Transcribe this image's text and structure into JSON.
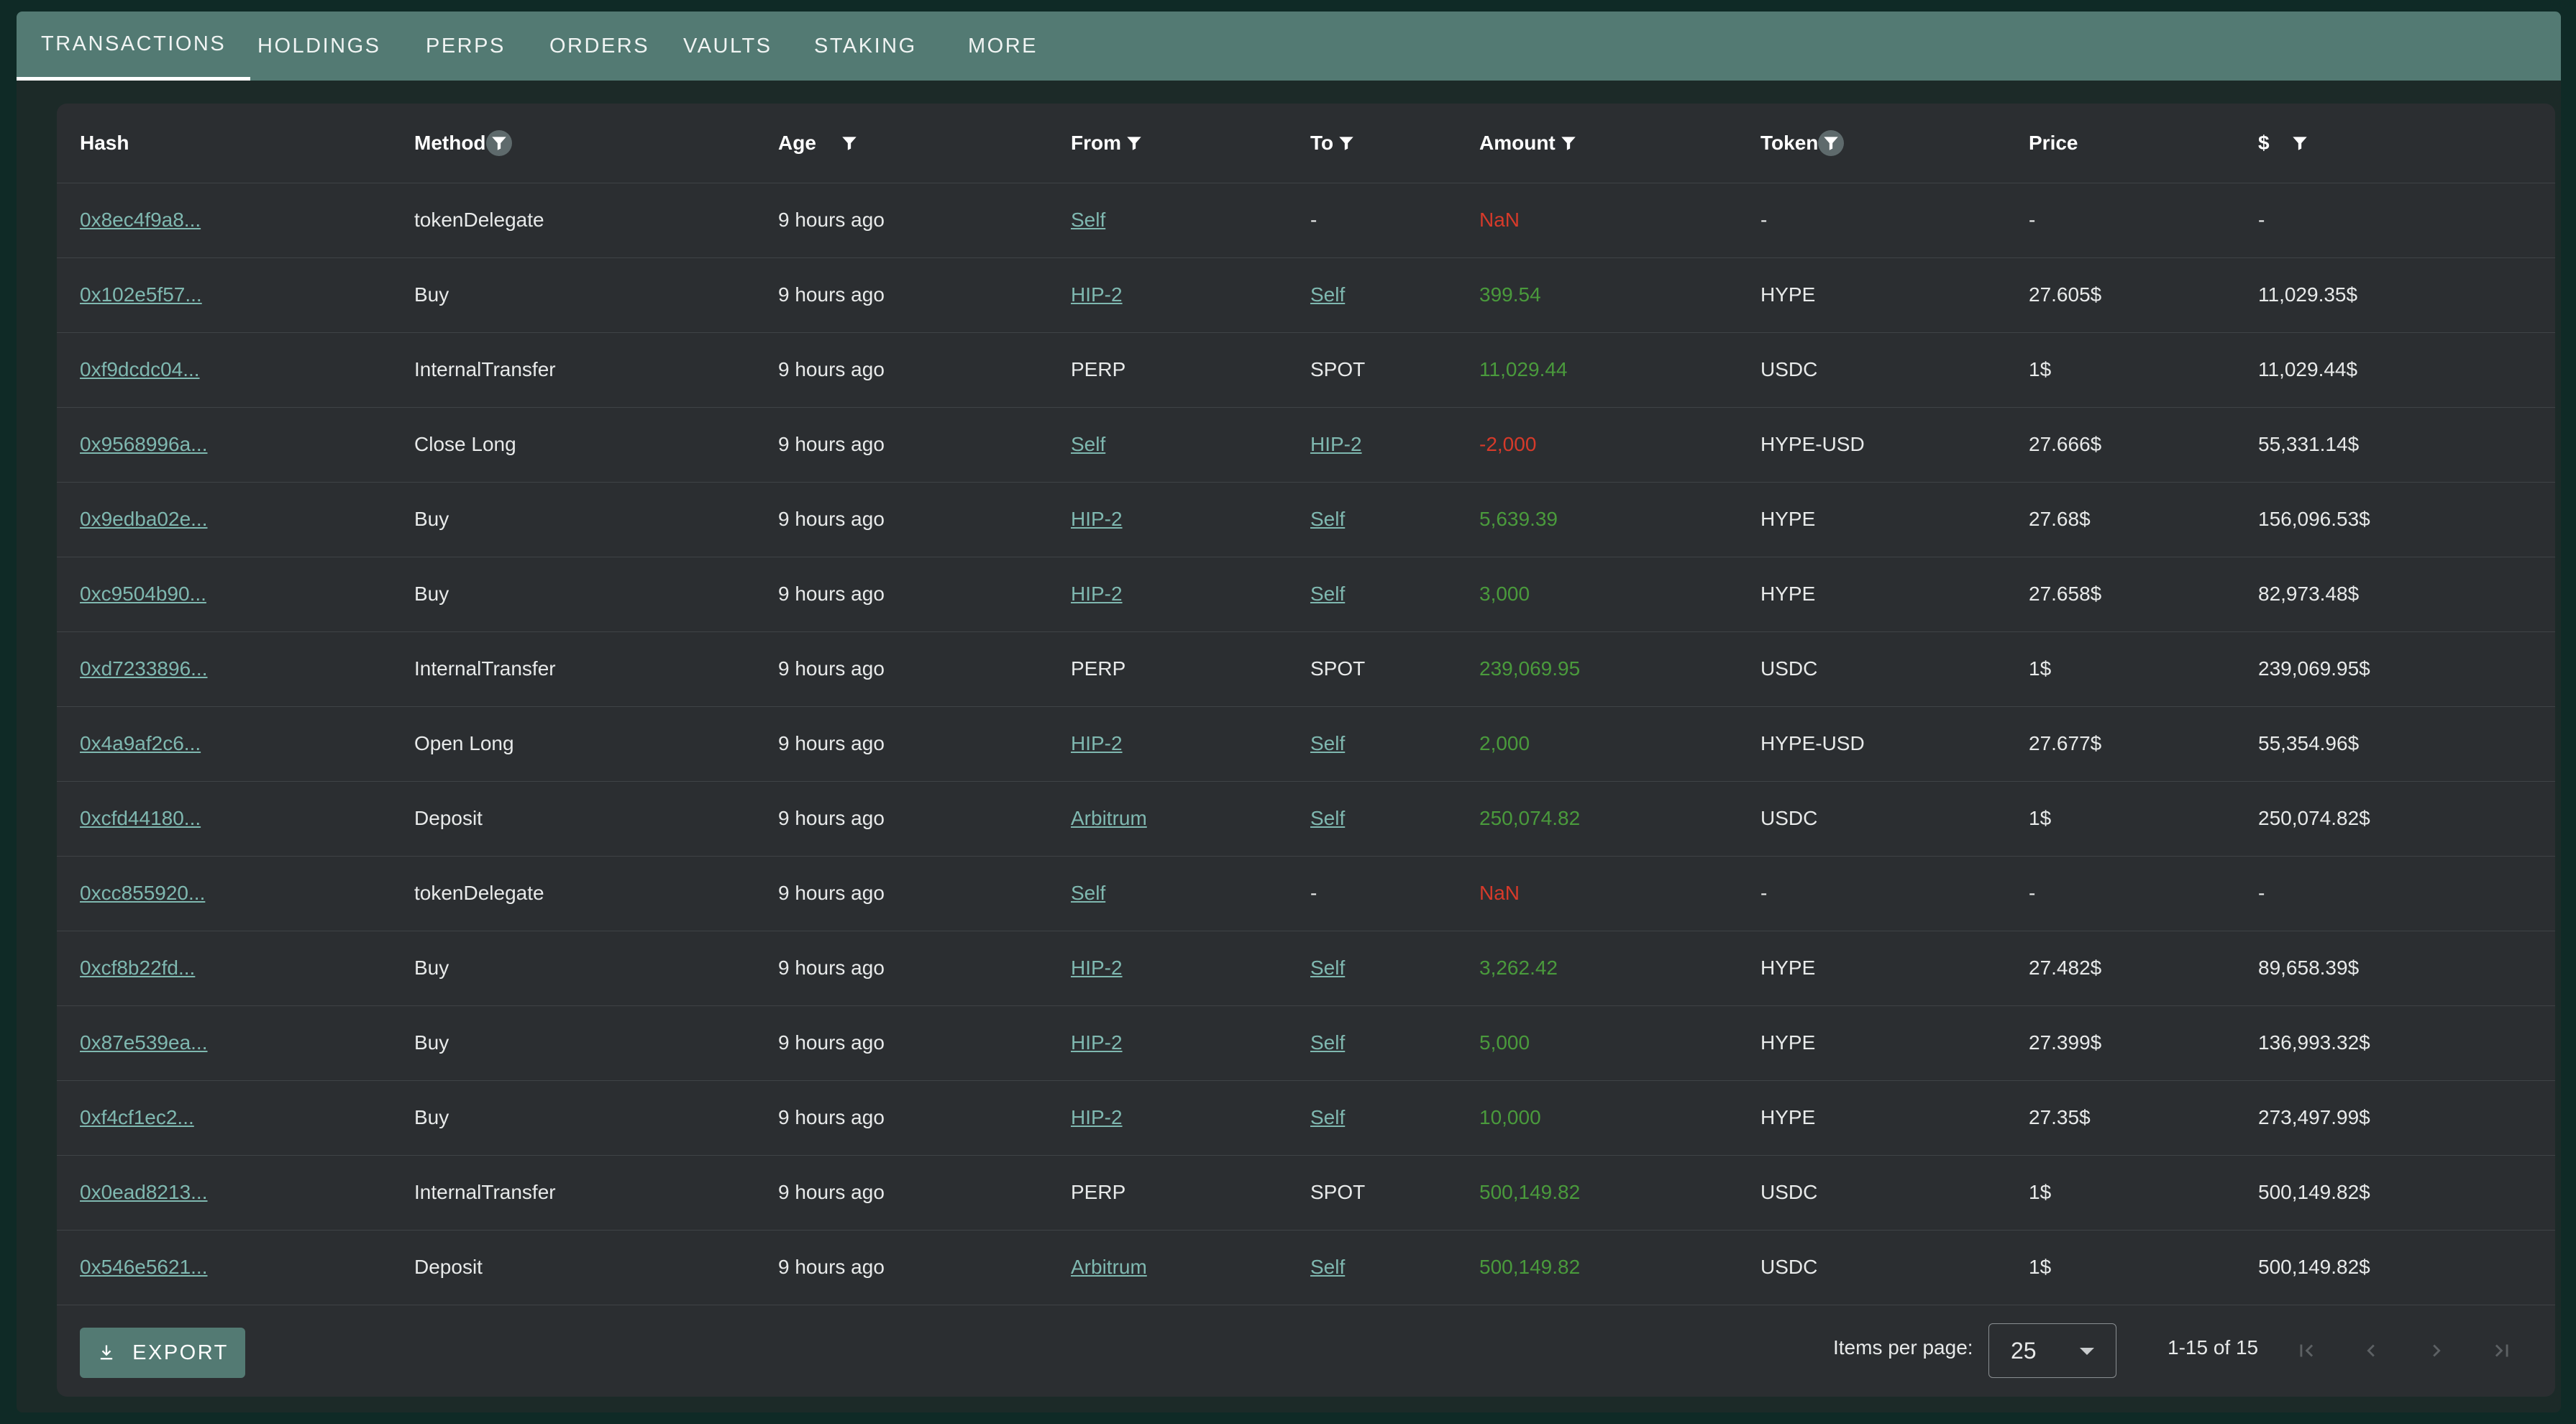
{
  "tabs": [
    {
      "label": "TRANSACTIONS",
      "active": true
    },
    {
      "label": "HOLDINGS"
    },
    {
      "label": "PERPS"
    },
    {
      "label": "ORDERS"
    },
    {
      "label": "VAULTS"
    },
    {
      "label": "STAKING"
    },
    {
      "label": "MORE"
    }
  ],
  "columns": [
    "Hash",
    "Method",
    "Age",
    "From",
    "To",
    "Amount",
    "Token",
    "Price",
    "$"
  ],
  "rows": [
    {
      "hash": "0x8ec4f9a8...",
      "method": "tokenDelegate",
      "age": "9 hours ago",
      "from": "Self",
      "from_link": true,
      "to": "-",
      "to_link": false,
      "amount": "NaN",
      "amount_type": "neg",
      "token": "-",
      "price": "-",
      "usd": "-"
    },
    {
      "hash": "0x102e5f57...",
      "method": "Buy",
      "age": "9 hours ago",
      "from": "HIP-2",
      "from_link": true,
      "to": "Self",
      "to_link": true,
      "amount": "399.54",
      "amount_type": "pos",
      "token": "HYPE",
      "price": "27.605$",
      "usd": "11,029.35$"
    },
    {
      "hash": "0xf9dcdc04...",
      "method": "InternalTransfer",
      "age": "9 hours ago",
      "from": "PERP",
      "from_link": false,
      "to": "SPOT",
      "to_link": false,
      "amount": "11,029.44",
      "amount_type": "pos",
      "token": "USDC",
      "price": "1$",
      "usd": "11,029.44$"
    },
    {
      "hash": "0x9568996a...",
      "method": "Close Long",
      "age": "9 hours ago",
      "from": "Self",
      "from_link": true,
      "to": "HIP-2",
      "to_link": true,
      "amount": "-2,000",
      "amount_type": "neg",
      "token": "HYPE-USD",
      "price": "27.666$",
      "usd": "55,331.14$"
    },
    {
      "hash": "0x9edba02e...",
      "method": "Buy",
      "age": "9 hours ago",
      "from": "HIP-2",
      "from_link": true,
      "to": "Self",
      "to_link": true,
      "amount": "5,639.39",
      "amount_type": "pos",
      "token": "HYPE",
      "price": "27.68$",
      "usd": "156,096.53$"
    },
    {
      "hash": "0xc9504b90...",
      "method": "Buy",
      "age": "9 hours ago",
      "from": "HIP-2",
      "from_link": true,
      "to": "Self",
      "to_link": true,
      "amount": "3,000",
      "amount_type": "pos",
      "token": "HYPE",
      "price": "27.658$",
      "usd": "82,973.48$"
    },
    {
      "hash": "0xd7233896...",
      "method": "InternalTransfer",
      "age": "9 hours ago",
      "from": "PERP",
      "from_link": false,
      "to": "SPOT",
      "to_link": false,
      "amount": "239,069.95",
      "amount_type": "pos",
      "token": "USDC",
      "price": "1$",
      "usd": "239,069.95$"
    },
    {
      "hash": "0x4a9af2c6...",
      "method": "Open Long",
      "age": "9 hours ago",
      "from": "HIP-2",
      "from_link": true,
      "to": "Self",
      "to_link": true,
      "amount": "2,000",
      "amount_type": "pos",
      "token": "HYPE-USD",
      "price": "27.677$",
      "usd": "55,354.96$"
    },
    {
      "hash": "0xcfd44180...",
      "method": "Deposit",
      "age": "9 hours ago",
      "from": "Arbitrum",
      "from_link": true,
      "to": "Self",
      "to_link": true,
      "amount": "250,074.82",
      "amount_type": "pos",
      "token": "USDC",
      "price": "1$",
      "usd": "250,074.82$"
    },
    {
      "hash": "0xcc855920...",
      "method": "tokenDelegate",
      "age": "9 hours ago",
      "from": "Self",
      "from_link": true,
      "to": "-",
      "to_link": false,
      "amount": "NaN",
      "amount_type": "neg",
      "token": "-",
      "price": "-",
      "usd": "-"
    },
    {
      "hash": "0xcf8b22fd...",
      "method": "Buy",
      "age": "9 hours ago",
      "from": "HIP-2",
      "from_link": true,
      "to": "Self",
      "to_link": true,
      "amount": "3,262.42",
      "amount_type": "pos",
      "token": "HYPE",
      "price": "27.482$",
      "usd": "89,658.39$"
    },
    {
      "hash": "0x87e539ea...",
      "method": "Buy",
      "age": "9 hours ago",
      "from": "HIP-2",
      "from_link": true,
      "to": "Self",
      "to_link": true,
      "amount": "5,000",
      "amount_type": "pos",
      "token": "HYPE",
      "price": "27.399$",
      "usd": "136,993.32$"
    },
    {
      "hash": "0xf4cf1ec2...",
      "method": "Buy",
      "age": "9 hours ago",
      "from": "HIP-2",
      "from_link": true,
      "to": "Self",
      "to_link": true,
      "amount": "10,000",
      "amount_type": "pos",
      "token": "HYPE",
      "price": "27.35$",
      "usd": "273,497.99$"
    },
    {
      "hash": "0x0ead8213...",
      "method": "InternalTransfer",
      "age": "9 hours ago",
      "from": "PERP",
      "from_link": false,
      "to": "SPOT",
      "to_link": false,
      "amount": "500,149.82",
      "amount_type": "pos",
      "token": "USDC",
      "price": "1$",
      "usd": "500,149.82$"
    },
    {
      "hash": "0x546e5621...",
      "method": "Deposit",
      "age": "9 hours ago",
      "from": "Arbitrum",
      "from_link": true,
      "to": "Self",
      "to_link": true,
      "amount": "500,149.82",
      "amount_type": "pos",
      "token": "USDC",
      "price": "1$",
      "usd": "500,149.82$"
    }
  ],
  "footer": {
    "export_label": "EXPORT",
    "export_icon": "download-icon",
    "items_per_page_label": "Items per page:",
    "items_per_page_value": "25",
    "range": "1-15 of 15"
  },
  "colors": {
    "accent": "#537a73",
    "link": "#7fb8b0",
    "positive": "#4a9a3c",
    "negative": "#d63a2a"
  }
}
